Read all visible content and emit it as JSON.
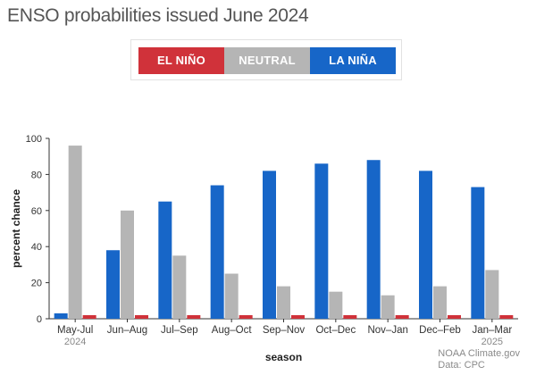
{
  "title": "ENSO probabilities issued June 2024",
  "legend": [
    {
      "label": "EL NIÑO",
      "color": "#d0323a"
    },
    {
      "label": "NEUTRAL",
      "color": "#b5b5b5"
    },
    {
      "label": "LA NIÑA",
      "color": "#1766c8"
    }
  ],
  "footer": {
    "line1": "NOAA Climate.gov",
    "line2": "Data: CPC"
  },
  "chart_data": {
    "type": "bar",
    "xlabel": "season",
    "ylabel": "percent chance",
    "ylim": [
      0,
      100
    ],
    "yticks": [
      0,
      20,
      40,
      60,
      80,
      100
    ],
    "grid": false,
    "legend_position": "top-center",
    "categories": [
      "May-Jul",
      "Jun–Aug",
      "Jul–Sep",
      "Aug–Oct",
      "Sep–Nov",
      "Oct–Dec",
      "Nov–Jan",
      "Dec–Feb",
      "Jan–Mar"
    ],
    "category_sublabels": [
      "2024",
      "",
      "",
      "",
      "",
      "",
      "",
      "",
      "2025"
    ],
    "series": [
      {
        "name": "LA NIÑA",
        "color": "#1766c8",
        "values": [
          3,
          38,
          65,
          74,
          82,
          86,
          88,
          82,
          73
        ]
      },
      {
        "name": "NEUTRAL",
        "color": "#b5b5b5",
        "values": [
          96,
          60,
          35,
          25,
          18,
          15,
          13,
          18,
          27
        ]
      },
      {
        "name": "EL NIÑO",
        "color": "#d0323a",
        "values": [
          2,
          2,
          2,
          2,
          2,
          2,
          2,
          2,
          2
        ]
      }
    ]
  }
}
